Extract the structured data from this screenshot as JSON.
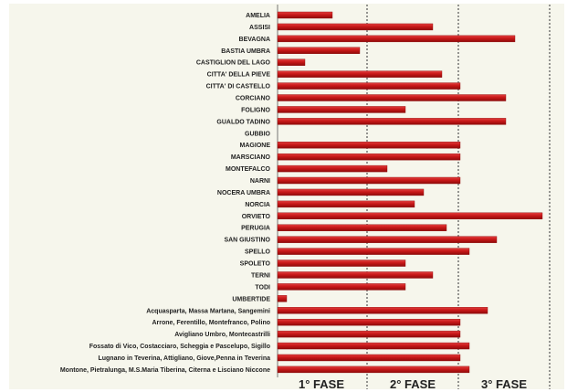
{
  "colors": {
    "background": "#f6f6ec",
    "bar_light": "#e24040",
    "bar_mid": "#c81818",
    "bar_dark": "#8e0a0a",
    "text": "#222222"
  },
  "chart_data": {
    "type": "bar",
    "orientation": "horizontal",
    "title": "",
    "xlabel": "",
    "ylabel": "",
    "xlim": [
      0,
      30
    ],
    "grid": false,
    "legend": "none",
    "phases": [
      "1° FASE",
      "2° FASE",
      "3° FASE"
    ],
    "phase_boundaries": [
      10,
      20,
      30
    ],
    "categories": [
      "AMELIA",
      "ASSISI",
      "BEVAGNA",
      "BASTIA UMBRA",
      "CASTIGLION DEL LAGO",
      "CITTA' DELLA PIEVE",
      "CITTA' DI CASTELLO",
      "CORCIANO",
      "FOLIGNO",
      "GUALDO TADINO",
      "GUBBIO",
      "MAGIONE",
      "MARSCIANO",
      "MONTEFALCO",
      "NARNI",
      "NOCERA  UMBRA",
      "NORCIA",
      "ORVIETO",
      "PERUGIA",
      "SAN GIUSTINO",
      "SPELLO",
      "SPOLETO",
      "TERNI",
      "TODI",
      "UMBERTIDE",
      "Acquasparta, Massa Martana, Sangemini",
      "Arrone, Ferentillo, Montefranco, Polino",
      "Avigliano Umbro, Montecastrilli",
      "Fossato di Vico, Costacciaro, Scheggia e Pascelupo, Sigillo",
      "Lugnano in Teverina, Attigliano, Giove,Penna in Teverina",
      "Montone, Pietralunga, M.S.Maria Tiberina, Citerna e Lisciano Niccone"
    ],
    "values": [
      6,
      17,
      26,
      9,
      3,
      18,
      20,
      25,
      14,
      25,
      0,
      20,
      20,
      12,
      20,
      16,
      15,
      29,
      18.5,
      24,
      21,
      14,
      17,
      14,
      1,
      23,
      20,
      20,
      21,
      20,
      21
    ]
  }
}
